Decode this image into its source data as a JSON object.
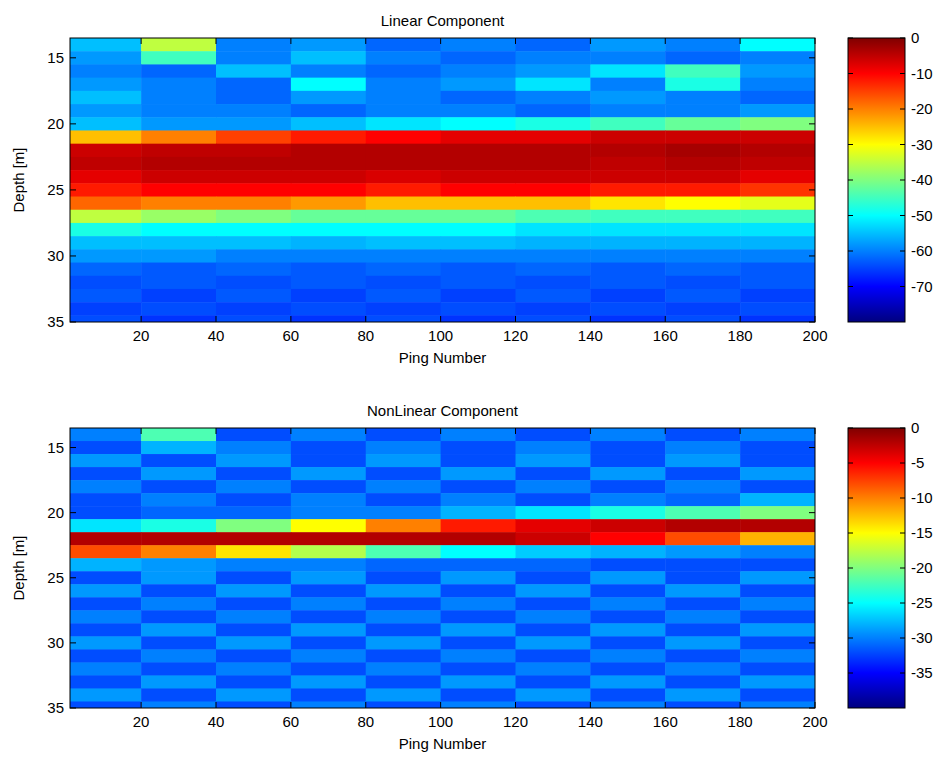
{
  "chart_data": [
    {
      "type": "heatmap",
      "title": "Linear Component",
      "x_label": "Ping Number",
      "y_label": "Depth [m]",
      "x": [
        10,
        30,
        50,
        70,
        90,
        110,
        130,
        150,
        170,
        190
      ],
      "y": [
        14,
        15,
        16,
        17,
        18,
        19,
        20,
        21,
        22,
        23,
        24,
        25,
        26,
        27,
        28,
        29,
        30,
        31,
        32,
        33,
        34,
        35
      ],
      "xlim": [
        1,
        200
      ],
      "xticks": [
        20,
        40,
        60,
        80,
        100,
        120,
        140,
        160,
        180,
        200
      ],
      "ylim": [
        13.5,
        35
      ],
      "yticks": [
        15,
        20,
        25,
        30,
        35
      ],
      "values": [
        [
          -55,
          -35,
          -60,
          -58,
          -62,
          -60,
          -62,
          -58,
          -60,
          -50
        ],
        [
          -58,
          -45,
          -60,
          -55,
          -60,
          -62,
          -60,
          -60,
          -62,
          -60
        ],
        [
          -60,
          -62,
          -55,
          -60,
          -62,
          -60,
          -58,
          -52,
          -45,
          -58
        ],
        [
          -58,
          -60,
          -62,
          -50,
          -60,
          -58,
          -52,
          -60,
          -48,
          -60
        ],
        [
          -55,
          -60,
          -62,
          -58,
          -60,
          -62,
          -60,
          -58,
          -60,
          -62
        ],
        [
          -58,
          -60,
          -60,
          -62,
          -60,
          -60,
          -62,
          -60,
          -60,
          -58
        ],
        [
          -55,
          -58,
          -58,
          -55,
          -52,
          -50,
          -48,
          -45,
          -42,
          -40
        ],
        [
          -25,
          -20,
          -15,
          -12,
          -10,
          -8,
          -8,
          -6,
          -6,
          -6
        ],
        [
          -6,
          -5,
          -5,
          -4,
          -4,
          -4,
          -4,
          -4,
          -3,
          -4
        ],
        [
          -5,
          -4,
          -4,
          -4,
          -4,
          -4,
          -4,
          -5,
          -4,
          -5
        ],
        [
          -8,
          -6,
          -6,
          -6,
          -7,
          -6,
          -6,
          -6,
          -6,
          -8
        ],
        [
          -12,
          -10,
          -10,
          -10,
          -12,
          -10,
          -10,
          -12,
          -12,
          -14
        ],
        [
          -18,
          -20,
          -20,
          -22,
          -25,
          -25,
          -25,
          -28,
          -30,
          -32
        ],
        [
          -35,
          -38,
          -40,
          -42,
          -42,
          -42,
          -44,
          -45,
          -45,
          -45
        ],
        [
          -48,
          -50,
          -50,
          -50,
          -50,
          -50,
          -52,
          -52,
          -52,
          -52
        ],
        [
          -55,
          -55,
          -55,
          -56,
          -55,
          -55,
          -56,
          -56,
          -56,
          -56
        ],
        [
          -58,
          -58,
          -60,
          -60,
          -60,
          -60,
          -60,
          -60,
          -60,
          -60
        ],
        [
          -62,
          -63,
          -62,
          -63,
          -62,
          -63,
          -62,
          -63,
          -62,
          -63
        ],
        [
          -64,
          -63,
          -64,
          -63,
          -64,
          -63,
          -64,
          -63,
          -64,
          -63
        ],
        [
          -63,
          -65,
          -63,
          -65,
          -63,
          -65,
          -63,
          -65,
          -63,
          -65
        ],
        [
          -65,
          -64,
          -65,
          -64,
          -65,
          -64,
          -65,
          -64,
          -65,
          -64
        ],
        [
          -64,
          -66,
          -64,
          -66,
          -64,
          -66,
          -64,
          -66,
          -64,
          -66
        ]
      ],
      "colorbar": {
        "range": [
          -80,
          0
        ],
        "ticks": [
          0,
          -10,
          -20,
          -30,
          -40,
          -50,
          -60,
          -70
        ]
      }
    },
    {
      "type": "heatmap",
      "title": "NonLinear Component",
      "x_label": "Ping Number",
      "y_label": "Depth [m]",
      "x": [
        10,
        30,
        50,
        70,
        90,
        110,
        130,
        150,
        170,
        190
      ],
      "y": [
        14,
        15,
        16,
        17,
        18,
        19,
        20,
        21,
        22,
        23,
        24,
        25,
        26,
        27,
        28,
        29,
        30,
        31,
        32,
        33,
        34,
        35
      ],
      "xlim": [
        1,
        200
      ],
      "xticks": [
        20,
        40,
        60,
        80,
        100,
        120,
        140,
        160,
        180,
        200
      ],
      "ylim": [
        13.5,
        35
      ],
      "yticks": [
        15,
        20,
        25,
        30,
        35
      ],
      "values": [
        [
          -30,
          -22,
          -32,
          -30,
          -32,
          -30,
          -32,
          -30,
          -32,
          -30
        ],
        [
          -32,
          -28,
          -30,
          -32,
          -30,
          -32,
          -30,
          -32,
          -30,
          -32
        ],
        [
          -29,
          -32,
          -29,
          -32,
          -29,
          -32,
          -29,
          -32,
          -29,
          -32
        ],
        [
          -32,
          -29,
          -32,
          -29,
          -32,
          -29,
          -32,
          -29,
          -32,
          -29
        ],
        [
          -30,
          -32,
          -30,
          -32,
          -30,
          -32,
          -30,
          -32,
          -30,
          -32
        ],
        [
          -32,
          -30,
          -32,
          -30,
          -32,
          -30,
          -32,
          -30,
          -31,
          -28
        ],
        [
          -32,
          -31,
          -31,
          -30,
          -30,
          -28,
          -26,
          -24,
          -22,
          -20
        ],
        [
          -26,
          -24,
          -20,
          -15,
          -10,
          -6,
          -4,
          -3,
          -2,
          -2
        ],
        [
          -2,
          -2,
          -2,
          -2,
          -2,
          -2,
          -3,
          -5,
          -8,
          -12
        ],
        [
          -8,
          -10,
          -14,
          -18,
          -22,
          -25,
          -27,
          -28,
          -29,
          -30
        ],
        [
          -28,
          -29,
          -30,
          -30,
          -31,
          -31,
          -31,
          -32,
          -32,
          -32
        ],
        [
          -32,
          -29,
          -32,
          -29,
          -32,
          -29,
          -32,
          -29,
          -32,
          -29
        ],
        [
          -29,
          -32,
          -29,
          -32,
          -29,
          -32,
          -29,
          -32,
          -29,
          -32
        ],
        [
          -32,
          -30,
          -32,
          -30,
          -32,
          -30,
          -32,
          -30,
          -32,
          -30
        ],
        [
          -30,
          -32,
          -30,
          -32,
          -30,
          -32,
          -30,
          -32,
          -30,
          -32
        ],
        [
          -32,
          -29,
          -32,
          -29,
          -32,
          -29,
          -32,
          -29,
          -32,
          -29
        ],
        [
          -29,
          -32,
          -29,
          -32,
          -29,
          -32,
          -29,
          -32,
          -29,
          -32
        ],
        [
          -32,
          -30,
          -32,
          -30,
          -32,
          -30,
          -32,
          -30,
          -32,
          -30
        ],
        [
          -30,
          -32,
          -30,
          -32,
          -30,
          -32,
          -30,
          -32,
          -30,
          -32
        ],
        [
          -32,
          -29,
          -32,
          -29,
          -32,
          -29,
          -32,
          -29,
          -32,
          -29
        ],
        [
          -29,
          -32,
          -29,
          -32,
          -29,
          -32,
          -29,
          -32,
          -29,
          -32
        ],
        [
          -32,
          -30,
          -32,
          -30,
          -32,
          -30,
          -32,
          -30,
          -32,
          -30
        ]
      ],
      "colorbar": {
        "range": [
          -40,
          0
        ],
        "ticks": [
          0,
          -5,
          -10,
          -15,
          -20,
          -25,
          -30,
          -35
        ]
      }
    }
  ]
}
